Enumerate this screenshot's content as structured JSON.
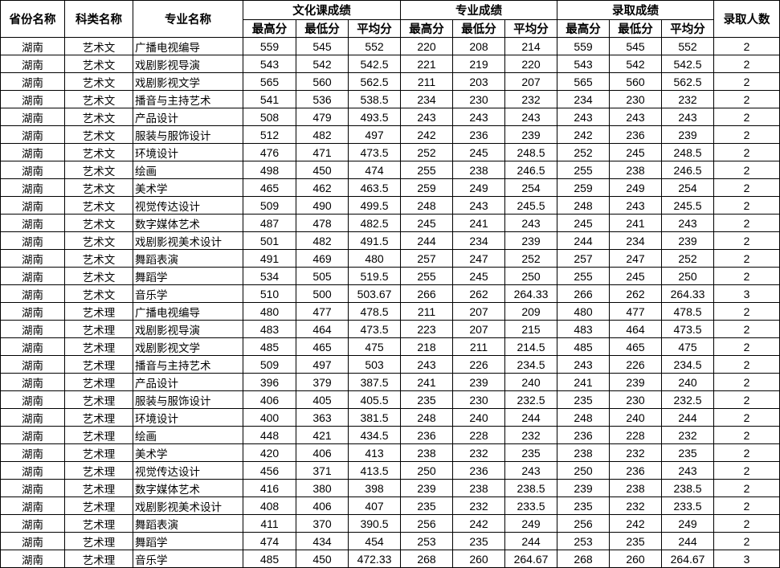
{
  "headers": {
    "province": "省份名称",
    "category": "科类名称",
    "major": "专业名称",
    "groups": [
      "文化课成绩",
      "专业成绩",
      "录取成绩"
    ],
    "sub": [
      "最高分",
      "最低分",
      "平均分"
    ],
    "admitted": "录取人数"
  },
  "rows": [
    [
      "湖南",
      "艺术文",
      "广播电视编导",
      "559",
      "545",
      "552",
      "220",
      "208",
      "214",
      "559",
      "545",
      "552",
      "2"
    ],
    [
      "湖南",
      "艺术文",
      "戏剧影视导演",
      "543",
      "542",
      "542.5",
      "221",
      "219",
      "220",
      "543",
      "542",
      "542.5",
      "2"
    ],
    [
      "湖南",
      "艺术文",
      "戏剧影视文学",
      "565",
      "560",
      "562.5",
      "211",
      "203",
      "207",
      "565",
      "560",
      "562.5",
      "2"
    ],
    [
      "湖南",
      "艺术文",
      "播音与主持艺术",
      "541",
      "536",
      "538.5",
      "234",
      "230",
      "232",
      "234",
      "230",
      "232",
      "2"
    ],
    [
      "湖南",
      "艺术文",
      "产品设计",
      "508",
      "479",
      "493.5",
      "243",
      "243",
      "243",
      "243",
      "243",
      "243",
      "2"
    ],
    [
      "湖南",
      "艺术文",
      "服装与服饰设计",
      "512",
      "482",
      "497",
      "242",
      "236",
      "239",
      "242",
      "236",
      "239",
      "2"
    ],
    [
      "湖南",
      "艺术文",
      "环境设计",
      "476",
      "471",
      "473.5",
      "252",
      "245",
      "248.5",
      "252",
      "245",
      "248.5",
      "2"
    ],
    [
      "湖南",
      "艺术文",
      "绘画",
      "498",
      "450",
      "474",
      "255",
      "238",
      "246.5",
      "255",
      "238",
      "246.5",
      "2"
    ],
    [
      "湖南",
      "艺术文",
      "美术学",
      "465",
      "462",
      "463.5",
      "259",
      "249",
      "254",
      "259",
      "249",
      "254",
      "2"
    ],
    [
      "湖南",
      "艺术文",
      "视觉传达设计",
      "509",
      "490",
      "499.5",
      "248",
      "243",
      "245.5",
      "248",
      "243",
      "245.5",
      "2"
    ],
    [
      "湖南",
      "艺术文",
      "数字媒体艺术",
      "487",
      "478",
      "482.5",
      "245",
      "241",
      "243",
      "245",
      "241",
      "243",
      "2"
    ],
    [
      "湖南",
      "艺术文",
      "戏剧影视美术设计",
      "501",
      "482",
      "491.5",
      "244",
      "234",
      "239",
      "244",
      "234",
      "239",
      "2"
    ],
    [
      "湖南",
      "艺术文",
      "舞蹈表演",
      "491",
      "469",
      "480",
      "257",
      "247",
      "252",
      "257",
      "247",
      "252",
      "2"
    ],
    [
      "湖南",
      "艺术文",
      "舞蹈学",
      "534",
      "505",
      "519.5",
      "255",
      "245",
      "250",
      "255",
      "245",
      "250",
      "2"
    ],
    [
      "湖南",
      "艺术文",
      "音乐学",
      "510",
      "500",
      "503.67",
      "266",
      "262",
      "264.33",
      "266",
      "262",
      "264.33",
      "3"
    ],
    [
      "湖南",
      "艺术理",
      "广播电视编导",
      "480",
      "477",
      "478.5",
      "211",
      "207",
      "209",
      "480",
      "477",
      "478.5",
      "2"
    ],
    [
      "湖南",
      "艺术理",
      "戏剧影视导演",
      "483",
      "464",
      "473.5",
      "223",
      "207",
      "215",
      "483",
      "464",
      "473.5",
      "2"
    ],
    [
      "湖南",
      "艺术理",
      "戏剧影视文学",
      "485",
      "465",
      "475",
      "218",
      "211",
      "214.5",
      "485",
      "465",
      "475",
      "2"
    ],
    [
      "湖南",
      "艺术理",
      "播音与主持艺术",
      "509",
      "497",
      "503",
      "243",
      "226",
      "234.5",
      "243",
      "226",
      "234.5",
      "2"
    ],
    [
      "湖南",
      "艺术理",
      "产品设计",
      "396",
      "379",
      "387.5",
      "241",
      "239",
      "240",
      "241",
      "239",
      "240",
      "2"
    ],
    [
      "湖南",
      "艺术理",
      "服装与服饰设计",
      "406",
      "405",
      "405.5",
      "235",
      "230",
      "232.5",
      "235",
      "230",
      "232.5",
      "2"
    ],
    [
      "湖南",
      "艺术理",
      "环境设计",
      "400",
      "363",
      "381.5",
      "248",
      "240",
      "244",
      "248",
      "240",
      "244",
      "2"
    ],
    [
      "湖南",
      "艺术理",
      "绘画",
      "448",
      "421",
      "434.5",
      "236",
      "228",
      "232",
      "236",
      "228",
      "232",
      "2"
    ],
    [
      "湖南",
      "艺术理",
      "美术学",
      "420",
      "406",
      "413",
      "238",
      "232",
      "235",
      "238",
      "232",
      "235",
      "2"
    ],
    [
      "湖南",
      "艺术理",
      "视觉传达设计",
      "456",
      "371",
      "413.5",
      "250",
      "236",
      "243",
      "250",
      "236",
      "243",
      "2"
    ],
    [
      "湖南",
      "艺术理",
      "数字媒体艺术",
      "416",
      "380",
      "398",
      "239",
      "238",
      "238.5",
      "239",
      "238",
      "238.5",
      "2"
    ],
    [
      "湖南",
      "艺术理",
      "戏剧影视美术设计",
      "408",
      "406",
      "407",
      "235",
      "232",
      "233.5",
      "235",
      "232",
      "233.5",
      "2"
    ],
    [
      "湖南",
      "艺术理",
      "舞蹈表演",
      "411",
      "370",
      "390.5",
      "256",
      "242",
      "249",
      "256",
      "242",
      "249",
      "2"
    ],
    [
      "湖南",
      "艺术理",
      "舞蹈学",
      "474",
      "434",
      "454",
      "253",
      "235",
      "244",
      "253",
      "235",
      "244",
      "2"
    ],
    [
      "湖南",
      "艺术理",
      "音乐学",
      "485",
      "450",
      "472.33",
      "268",
      "260",
      "264.67",
      "268",
      "260",
      "264.67",
      "3"
    ]
  ]
}
